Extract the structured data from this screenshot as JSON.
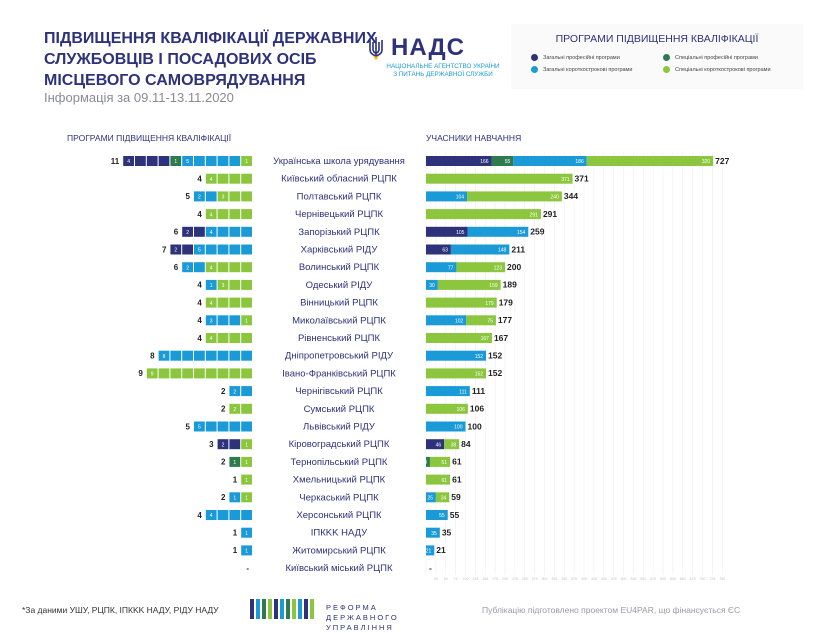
{
  "header": {
    "title_lines": [
      "ПІДВИЩЕННЯ КВАЛІФІКАЦІЇ ДЕРЖАВНИХ",
      "СЛУЖБОВЦІВ І ПОСАДОВИХ ОСІБ",
      "МІСЦЕВОГО САМОВРЯДУВАННЯ"
    ],
    "period": "Інформація за 09.11-13.11.2020"
  },
  "logo": {
    "name": "НАДС",
    "subtitle_line1": "НАЦІОНАЛЬНЕ АГЕНТСТВО УКРАЇНИ",
    "subtitle_line2": "З ПИТАНЬ ДЕРЖАВНОЇ СЛУЖБИ",
    "icon": "trident-icon"
  },
  "legend": {
    "title": "ПРОГРАМИ ПІДВИЩЕННЯ КВАЛІФІКАЦІЇ",
    "items": [
      {
        "label": "Загальні професійні програми",
        "color": "#2d327a"
      },
      {
        "label": "Спеціальні професійні програми",
        "color": "#2f7a4f"
      },
      {
        "label": "Загальні короткострокові програми",
        "color": "#1a9bd7"
      },
      {
        "label": "Спеціальні короткострокові програми",
        "color": "#8cc63f"
      }
    ]
  },
  "sections": {
    "programs_title": "ПРОГРАМИ ПІДВИЩЕННЯ КВАЛІФІКАЦІЇ",
    "participants_title": "УЧАСНИКИ НАВЧАННЯ"
  },
  "chart_data": {
    "type": "bar",
    "series_colors": {
      "zp": "#2d327a",
      "sp": "#2f7a4f",
      "zk": "#1a9bd7",
      "sk": "#8cc63f"
    },
    "xlim": [
      0,
      750
    ],
    "grid": true,
    "rows": [
      {
        "name": "Українська школа урядування",
        "programs_total": "11",
        "programs": {
          "zp": 4,
          "sp": 1,
          "zk": 5,
          "sk": 1
        },
        "participants": {
          "zp": 166,
          "sp": 55,
          "zk": 186,
          "sk": 320
        },
        "participants_total": "727"
      },
      {
        "name": "Київський обласний РЦПК",
        "programs_total": "4",
        "programs": {
          "zp": 0,
          "sp": 0,
          "zk": 0,
          "sk": 4
        },
        "participants": {
          "zp": 0,
          "sp": 0,
          "zk": 0,
          "sk": 371
        },
        "participants_total": "371"
      },
      {
        "name": "Полтавський РЦПК",
        "programs_total": "5",
        "programs": {
          "zp": 0,
          "sp": 0,
          "zk": 2,
          "sk": 3
        },
        "participants": {
          "zp": 0,
          "sp": 0,
          "zk": 104,
          "sk": 240
        },
        "participants_total": "344"
      },
      {
        "name": "Чернівецький РЦПК",
        "programs_total": "4",
        "programs": {
          "zp": 0,
          "sp": 0,
          "zk": 0,
          "sk": 4
        },
        "participants": {
          "zp": 0,
          "sp": 0,
          "zk": 0,
          "sk": 291
        },
        "participants_total": "291"
      },
      {
        "name": "Запорізький РЦПК",
        "programs_total": "6",
        "programs": {
          "zp": 2,
          "sp": 0,
          "zk": 4,
          "sk": 0
        },
        "participants": {
          "zp": 105,
          "sp": 0,
          "zk": 154,
          "sk": 0
        },
        "participants_total": "259"
      },
      {
        "name": "Харківський РІДУ",
        "programs_total": "7",
        "programs": {
          "zp": 2,
          "sp": 0,
          "zk": 5,
          "sk": 0
        },
        "participants": {
          "zp": 63,
          "sp": 0,
          "zk": 148,
          "sk": 0
        },
        "participants_total": "211"
      },
      {
        "name": "Волинський РЦПК",
        "programs_total": "6",
        "programs": {
          "zp": 0,
          "sp": 0,
          "zk": 2,
          "sk": 4
        },
        "participants": {
          "zp": 0,
          "sp": 0,
          "zk": 77,
          "sk": 123
        },
        "participants_total": "200"
      },
      {
        "name": "Одеський РІДУ",
        "programs_total": "4",
        "programs": {
          "zp": 0,
          "sp": 0,
          "zk": 1,
          "sk": 3
        },
        "participants": {
          "zp": 0,
          "sp": 0,
          "zk": 30,
          "sk": 159
        },
        "participants_total": "189"
      },
      {
        "name": "Вінницький РЦПК",
        "programs_total": "4",
        "programs": {
          "zp": 0,
          "sp": 0,
          "zk": 0,
          "sk": 4
        },
        "participants": {
          "zp": 0,
          "sp": 0,
          "zk": 0,
          "sk": 179
        },
        "participants_total": "179"
      },
      {
        "name": "Миколаївський РЦПК",
        "programs_total": "4",
        "programs": {
          "zp": 0,
          "sp": 0,
          "zk": 3,
          "sk": 1
        },
        "participants": {
          "zp": 0,
          "sp": 0,
          "zk": 102,
          "sk": 75
        },
        "participants_total": "177"
      },
      {
        "name": "Рівненський РЦПК",
        "programs_total": "4",
        "programs": {
          "zp": 0,
          "sp": 0,
          "zk": 0,
          "sk": 4
        },
        "participants": {
          "zp": 0,
          "sp": 0,
          "zk": 0,
          "sk": 167
        },
        "participants_total": "167"
      },
      {
        "name": "Дніпропетровський РІДУ",
        "programs_total": "8",
        "programs": {
          "zp": 0,
          "sp": 0,
          "zk": 8,
          "sk": 0
        },
        "participants": {
          "zp": 0,
          "sp": 0,
          "zk": 152,
          "sk": 0
        },
        "participants_total": "152"
      },
      {
        "name": "Івано-Франківський РЦПК",
        "programs_total": "9",
        "programs": {
          "zp": 0,
          "sp": 0,
          "zk": 0,
          "sk": 9
        },
        "participants": {
          "zp": 0,
          "sp": 0,
          "zk": 0,
          "sk": 152
        },
        "participants_total": "152"
      },
      {
        "name": "Чернігівський РЦПК",
        "programs_total": "2",
        "programs": {
          "zp": 0,
          "sp": 0,
          "zk": 2,
          "sk": 0
        },
        "participants": {
          "zp": 0,
          "sp": 0,
          "zk": 111,
          "sk": 0
        },
        "participants_total": "111"
      },
      {
        "name": "Сумський РЦПК",
        "programs_total": "2",
        "programs": {
          "zp": 0,
          "sp": 0,
          "zk": 0,
          "sk": 2
        },
        "participants": {
          "zp": 0,
          "sp": 0,
          "zk": 0,
          "sk": 106
        },
        "participants_total": "106"
      },
      {
        "name": "Львівський РІДУ",
        "programs_total": "5",
        "programs": {
          "zp": 0,
          "sp": 0,
          "zk": 5,
          "sk": 0
        },
        "participants": {
          "zp": 0,
          "sp": 0,
          "zk": 100,
          "sk": 0
        },
        "participants_total": "100"
      },
      {
        "name": "Кіровоградський РЦПК",
        "programs_total": "3",
        "programs": {
          "zp": 2,
          "sp": 0,
          "zk": 0,
          "sk": 1
        },
        "participants": {
          "zp": 46,
          "sp": 0,
          "zk": 0,
          "sk": 38
        },
        "participants_total": "84"
      },
      {
        "name": "Тернопільський РЦПК",
        "programs_total": "2",
        "programs": {
          "zp": 0,
          "sp": 1,
          "zk": 0,
          "sk": 1
        },
        "participants": {
          "zp": 0,
          "sp": 10,
          "zk": 0,
          "sk": 51
        },
        "participants_total": "61"
      },
      {
        "name": "Хмельницький РЦПК",
        "programs_total": "1",
        "programs": {
          "zp": 0,
          "sp": 0,
          "zk": 0,
          "sk": 1
        },
        "participants": {
          "zp": 0,
          "sp": 0,
          "zk": 0,
          "sk": 61
        },
        "participants_total": "61"
      },
      {
        "name": "Черкаський РЦПК",
        "programs_total": "2",
        "programs": {
          "zp": 0,
          "sp": 0,
          "zk": 1,
          "sk": 1
        },
        "participants": {
          "zp": 0,
          "sp": 0,
          "zk": 25,
          "sk": 34
        },
        "participants_total": "59"
      },
      {
        "name": "Херсонський РЦПК",
        "programs_total": "4",
        "programs": {
          "zp": 0,
          "sp": 0,
          "zk": 4,
          "sk": 0
        },
        "participants": {
          "zp": 0,
          "sp": 0,
          "zk": 55,
          "sk": 0
        },
        "participants_total": "55"
      },
      {
        "name": "ІПКKK НАДУ",
        "programs_total": "1",
        "programs": {
          "zp": 0,
          "sp": 0,
          "zk": 1,
          "sk": 0
        },
        "participants": {
          "zp": 0,
          "sp": 0,
          "zk": 35,
          "sk": 0
        },
        "participants_total": "35"
      },
      {
        "name": "Житомирський РЦПК",
        "programs_total": "1",
        "programs": {
          "zp": 0,
          "sp": 0,
          "zk": 1,
          "sk": 0
        },
        "participants": {
          "zp": 0,
          "sp": 0,
          "zk": 21,
          "sk": 0
        },
        "participants_total": "21"
      },
      {
        "name": "Київський міський РЦПК",
        "programs_total": "-",
        "programs": {
          "zp": 0,
          "sp": 0,
          "zk": 0,
          "sk": 0
        },
        "participants": {
          "zp": 0,
          "sp": 0,
          "zk": 0,
          "sk": 0
        },
        "participants_total": "-"
      }
    ]
  },
  "footer": {
    "note": "*За даними УШУ, РЦПК, ІПКKK НАДУ, РІДУ НАДУ",
    "reform_line1": "РЕФОРМА ДЕРЖАВНОГО",
    "reform_line2": "УПРАВЛІННЯ",
    "publication": "Публікацію підготовлено проектом EU4PAR, що фінансується ЄС"
  }
}
